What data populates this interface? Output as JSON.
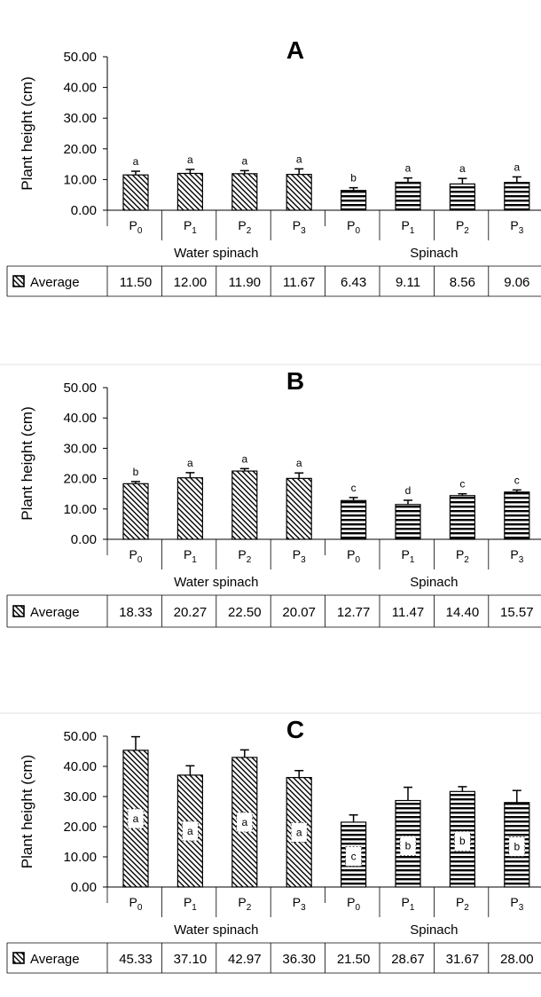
{
  "chart_data": [
    {
      "type": "bar",
      "title": "A",
      "ylabel": "Plant height (cm)",
      "ylim": [
        0,
        50
      ],
      "y_ticks": [
        "0.00",
        "10.00",
        "20.00",
        "30.00",
        "40.00",
        "50.00"
      ],
      "categories": [
        "P0",
        "P1",
        "P2",
        "P3",
        "P0",
        "P1",
        "P2",
        "P3"
      ],
      "groups": [
        "Water spinach",
        "Spinach"
      ],
      "values": [
        11.5,
        12.0,
        11.9,
        11.67,
        6.43,
        9.11,
        8.56,
        9.06
      ],
      "errors": [
        1.2,
        1.3,
        1.0,
        1.8,
        0.9,
        1.4,
        1.8,
        1.8
      ],
      "significance": [
        "a",
        "a",
        "a",
        "a",
        "b",
        "a",
        "a",
        "a"
      ],
      "legend_label": "Average",
      "table_values": [
        "11.50",
        "12.00",
        "11.90",
        "11.67",
        "6.43",
        "9.11",
        "8.56",
        "9.06"
      ],
      "grid": false
    },
    {
      "type": "bar",
      "title": "B",
      "ylabel": "Plant height (cm)",
      "ylim": [
        0,
        50
      ],
      "y_ticks": [
        "0.00",
        "10.00",
        "20.00",
        "30.00",
        "40.00",
        "50.00"
      ],
      "categories": [
        "P0",
        "P1",
        "P2",
        "P3",
        "P0",
        "P1",
        "P2",
        "P3"
      ],
      "groups": [
        "Water spinach",
        "Spinach"
      ],
      "values": [
        18.33,
        20.27,
        22.5,
        20.07,
        12.77,
        11.47,
        14.4,
        15.57
      ],
      "errors": [
        0.7,
        1.7,
        0.8,
        1.8,
        1.0,
        1.4,
        0.6,
        0.7
      ],
      "significance": [
        "b",
        "a",
        "a",
        "a",
        "c",
        "d",
        "c",
        "c"
      ],
      "legend_label": "Average",
      "table_values": [
        "18.33",
        "20.27",
        "22.50",
        "20.07",
        "12.77",
        "11.47",
        "14.40",
        "15.57"
      ],
      "grid": false
    },
    {
      "type": "bar",
      "title": "C",
      "ylabel": "Plant height (cm)",
      "ylim": [
        0,
        50
      ],
      "y_ticks": [
        "0.00",
        "10.00",
        "20.00",
        "30.00",
        "40.00",
        "50.00"
      ],
      "categories": [
        "P0",
        "P1",
        "P2",
        "P3",
        "P0",
        "P1",
        "P2",
        "P3"
      ],
      "groups": [
        "Water spinach",
        "Spinach"
      ],
      "values": [
        45.33,
        37.1,
        42.97,
        36.3,
        21.5,
        28.67,
        31.67,
        28.0
      ],
      "errors": [
        4.5,
        3.1,
        2.5,
        2.3,
        2.4,
        4.4,
        1.6,
        4.0
      ],
      "significance": [
        "a",
        "a",
        "a",
        "a",
        "c",
        "b",
        "b",
        "b"
      ],
      "legend_label": "Average",
      "table_values": [
        "45.33",
        "37.10",
        "42.97",
        "36.30",
        "21.50",
        "28.67",
        "31.67",
        "28.00"
      ],
      "grid": false
    }
  ]
}
